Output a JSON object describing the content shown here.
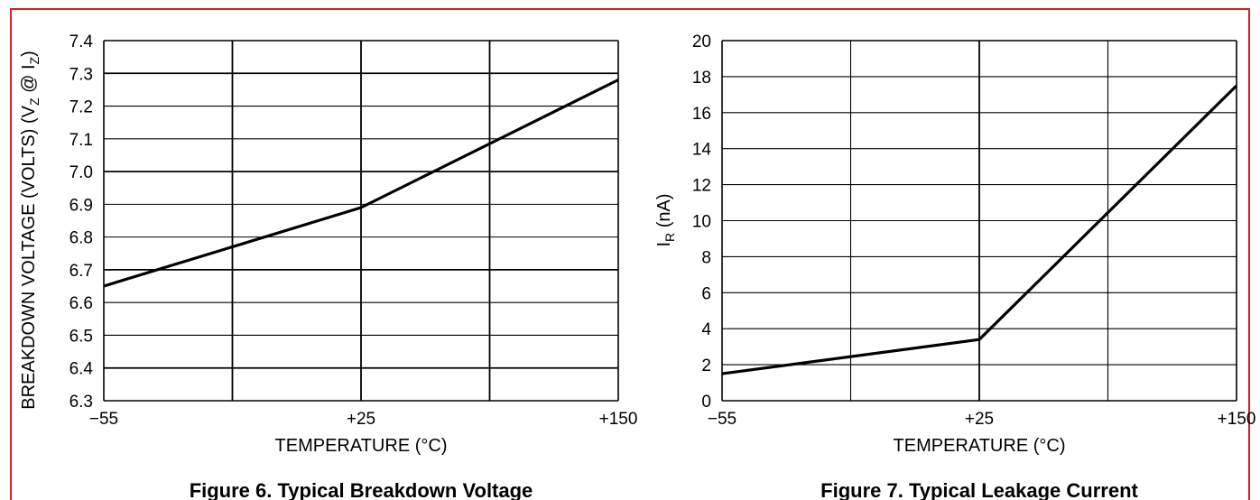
{
  "colors": {
    "frame": "#d81e1e",
    "line": "#000000",
    "grid": "#000000"
  },
  "chart_data": [
    {
      "type": "line",
      "title": "Figure 6. Typical Breakdown Voltage",
      "xlabel": "TEMPERATURE (°C)",
      "ylabel": "BREAKDOWN VOLTAGE (VOLTS) (VZ @ IZ)",
      "xticks": [
        "−55",
        "+25",
        "+150"
      ],
      "yticks": [
        "6.3",
        "6.4",
        "6.5",
        "6.6",
        "6.7",
        "6.8",
        "6.9",
        "7.0",
        "7.1",
        "7.2",
        "7.3",
        "7.4"
      ],
      "ylim": [
        6.3,
        7.4
      ],
      "xlim": [
        -55,
        150
      ],
      "grid": true,
      "series": [
        {
          "x": [
            -55,
            25,
            150
          ],
          "y": [
            6.65,
            6.89,
            7.28
          ]
        }
      ]
    },
    {
      "type": "line",
      "title": "Figure 7. Typical Leakage Current",
      "xlabel": "TEMPERATURE (°C)",
      "ylabel": "IR (nA)",
      "xticks": [
        "−55",
        "+25",
        "+150"
      ],
      "yticks": [
        "0",
        "2",
        "4",
        "6",
        "8",
        "10",
        "12",
        "14",
        "16",
        "18",
        "20"
      ],
      "ylim": [
        0,
        20
      ],
      "xlim": [
        -55,
        150
      ],
      "grid": true,
      "series": [
        {
          "x": [
            -55,
            25,
            150
          ],
          "y": [
            1.5,
            3.4,
            17.5
          ]
        }
      ]
    }
  ]
}
